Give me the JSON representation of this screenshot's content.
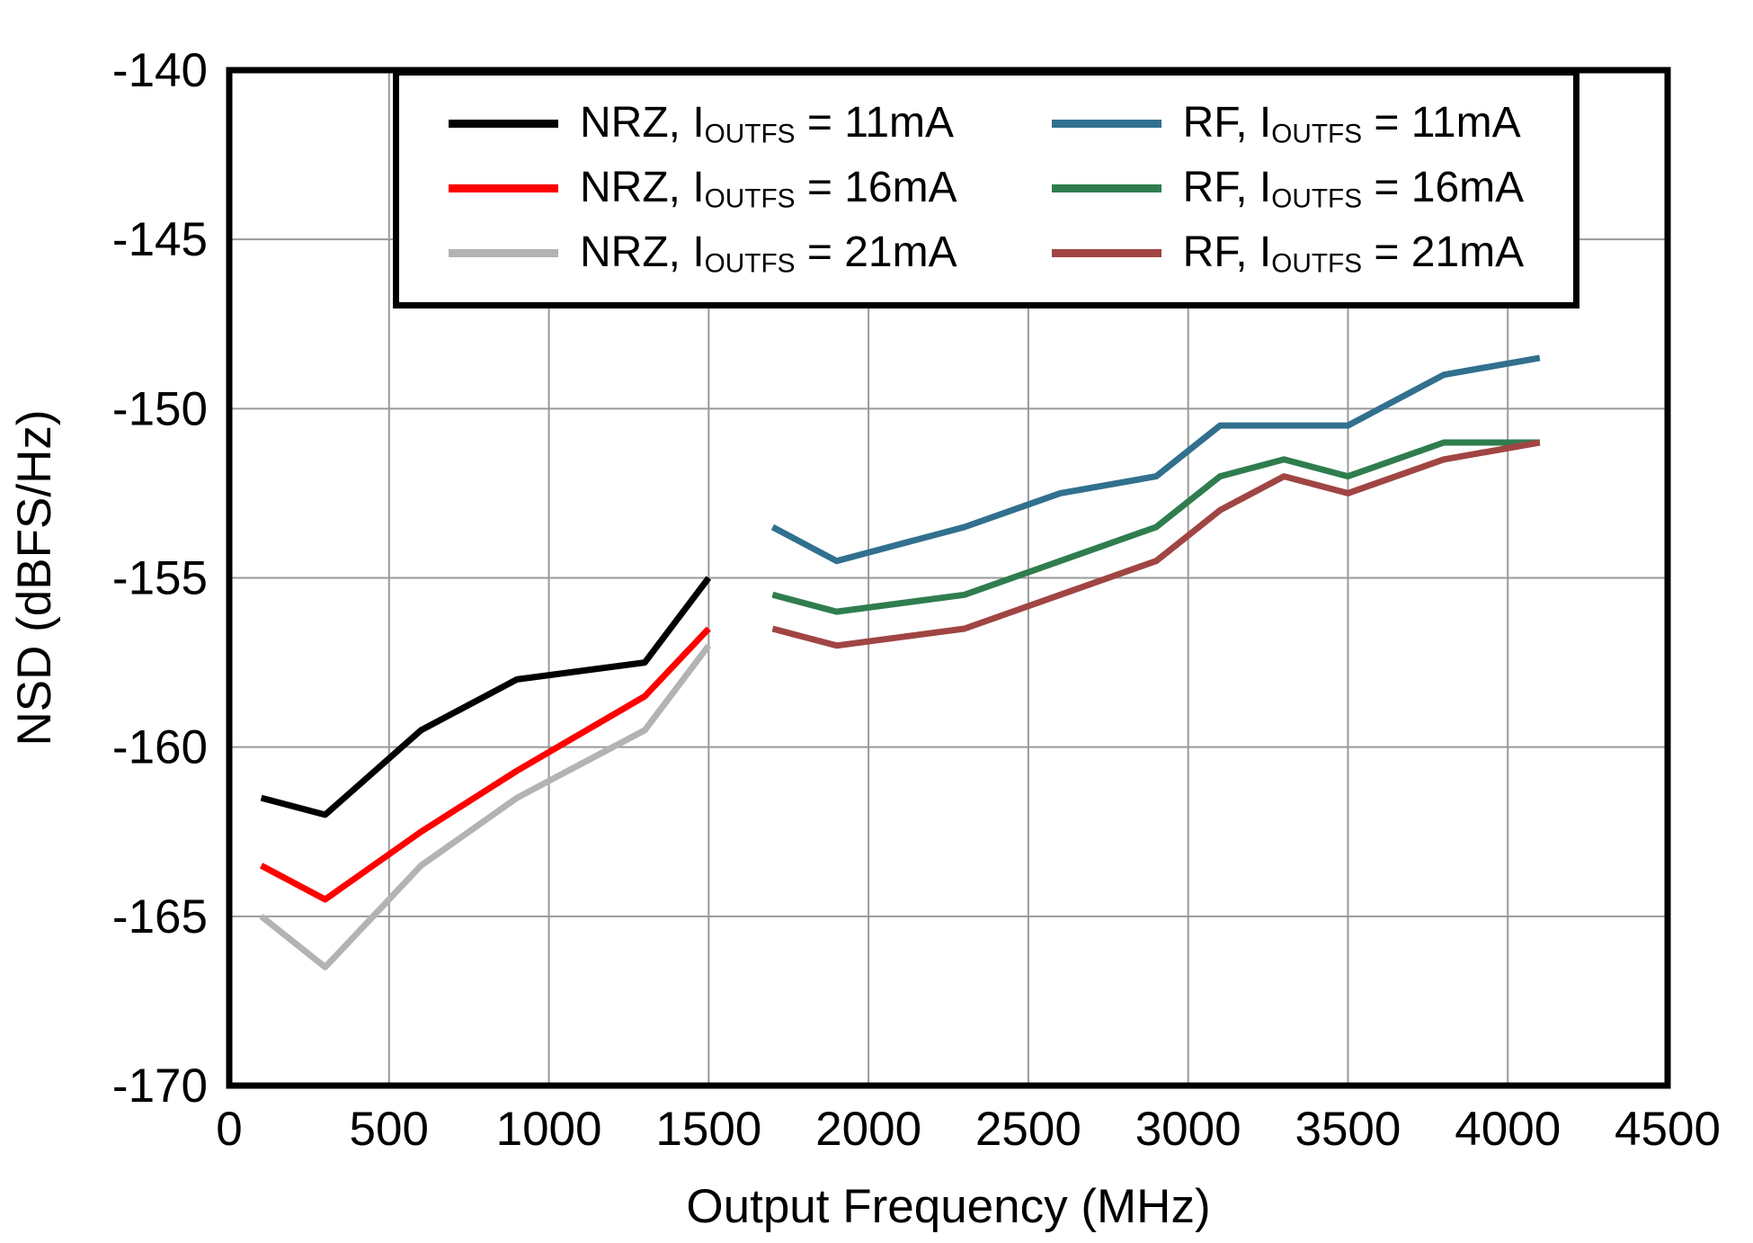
{
  "chart_data": {
    "type": "line",
    "title": "",
    "xlabel": "Output Frequency (MHz)",
    "ylabel": "NSD (dBFS/Hz)",
    "xlim": [
      0,
      4500
    ],
    "ylim": [
      -170,
      -140
    ],
    "xticks": [
      0,
      500,
      1000,
      1500,
      2000,
      2500,
      3000,
      3500,
      4000,
      4500
    ],
    "yticks": [
      -170,
      -165,
      -160,
      -155,
      -150,
      -145,
      -140
    ],
    "grid": true,
    "legend_position": "top-inside",
    "series": [
      {
        "name": "NRZ, IOUTFS = 11mA",
        "legend": {
          "pre": "NRZ, I",
          "sub": "OUTFS",
          "post": " = 11mA"
        },
        "color": "#000000",
        "x": [
          100,
          300,
          600,
          900,
          1300,
          1500
        ],
        "y": [
          -161.5,
          -162,
          -159.5,
          -158,
          -157.5,
          -155
        ]
      },
      {
        "name": "NRZ, IOUTFS = 16mA",
        "legend": {
          "pre": "NRZ, I",
          "sub": "OUTFS",
          "post": " = 16mA"
        },
        "color": "#ff0000",
        "x": [
          100,
          300,
          600,
          900,
          1300,
          1500
        ],
        "y": [
          -163.5,
          -164.5,
          -162.5,
          -160.7,
          -158.5,
          -156.5
        ]
      },
      {
        "name": "NRZ, IOUTFS = 21mA",
        "legend": {
          "pre": "NRZ, I",
          "sub": "OUTFS",
          "post": " = 21mA"
        },
        "color": "#b3b3b3",
        "x": [
          100,
          300,
          600,
          900,
          1300,
          1500
        ],
        "y": [
          -165,
          -166.5,
          -163.5,
          -161.5,
          -159.5,
          -157
        ]
      },
      {
        "name": "RF, IOUTFS = 11mA",
        "legend": {
          "pre": "RF, I",
          "sub": "OUTFS",
          "post": " = 11mA"
        },
        "color": "#31708e",
        "x": [
          1700,
          1900,
          2300,
          2600,
          2900,
          3100,
          3500,
          3800,
          4100
        ],
        "y": [
          -153.5,
          -154.5,
          -153.5,
          -152.5,
          -152,
          -150.5,
          -150.5,
          -149,
          -148.5
        ]
      },
      {
        "name": "RF, IOUTFS = 16mA",
        "legend": {
          "pre": "RF, I",
          "sub": "OUTFS",
          "post": " = 16mA"
        },
        "color": "#2f7d4f",
        "x": [
          1700,
          1900,
          2300,
          2600,
          2900,
          3100,
          3300,
          3500,
          3800,
          4100
        ],
        "y": [
          -155.5,
          -156,
          -155.5,
          -154.5,
          -153.5,
          -152,
          -151.5,
          -152,
          -151,
          -151
        ]
      },
      {
        "name": "RF, IOUTFS = 21mA",
        "legend": {
          "pre": "RF, I",
          "sub": "OUTFS",
          "post": " = 21mA"
        },
        "color": "#a04543",
        "x": [
          1700,
          1900,
          2300,
          2600,
          2900,
          3100,
          3300,
          3500,
          3800,
          4100
        ],
        "y": [
          -156.5,
          -157,
          -156.5,
          -155.5,
          -154.5,
          -153,
          -152,
          -152.5,
          -151.5,
          -151
        ]
      }
    ]
  }
}
